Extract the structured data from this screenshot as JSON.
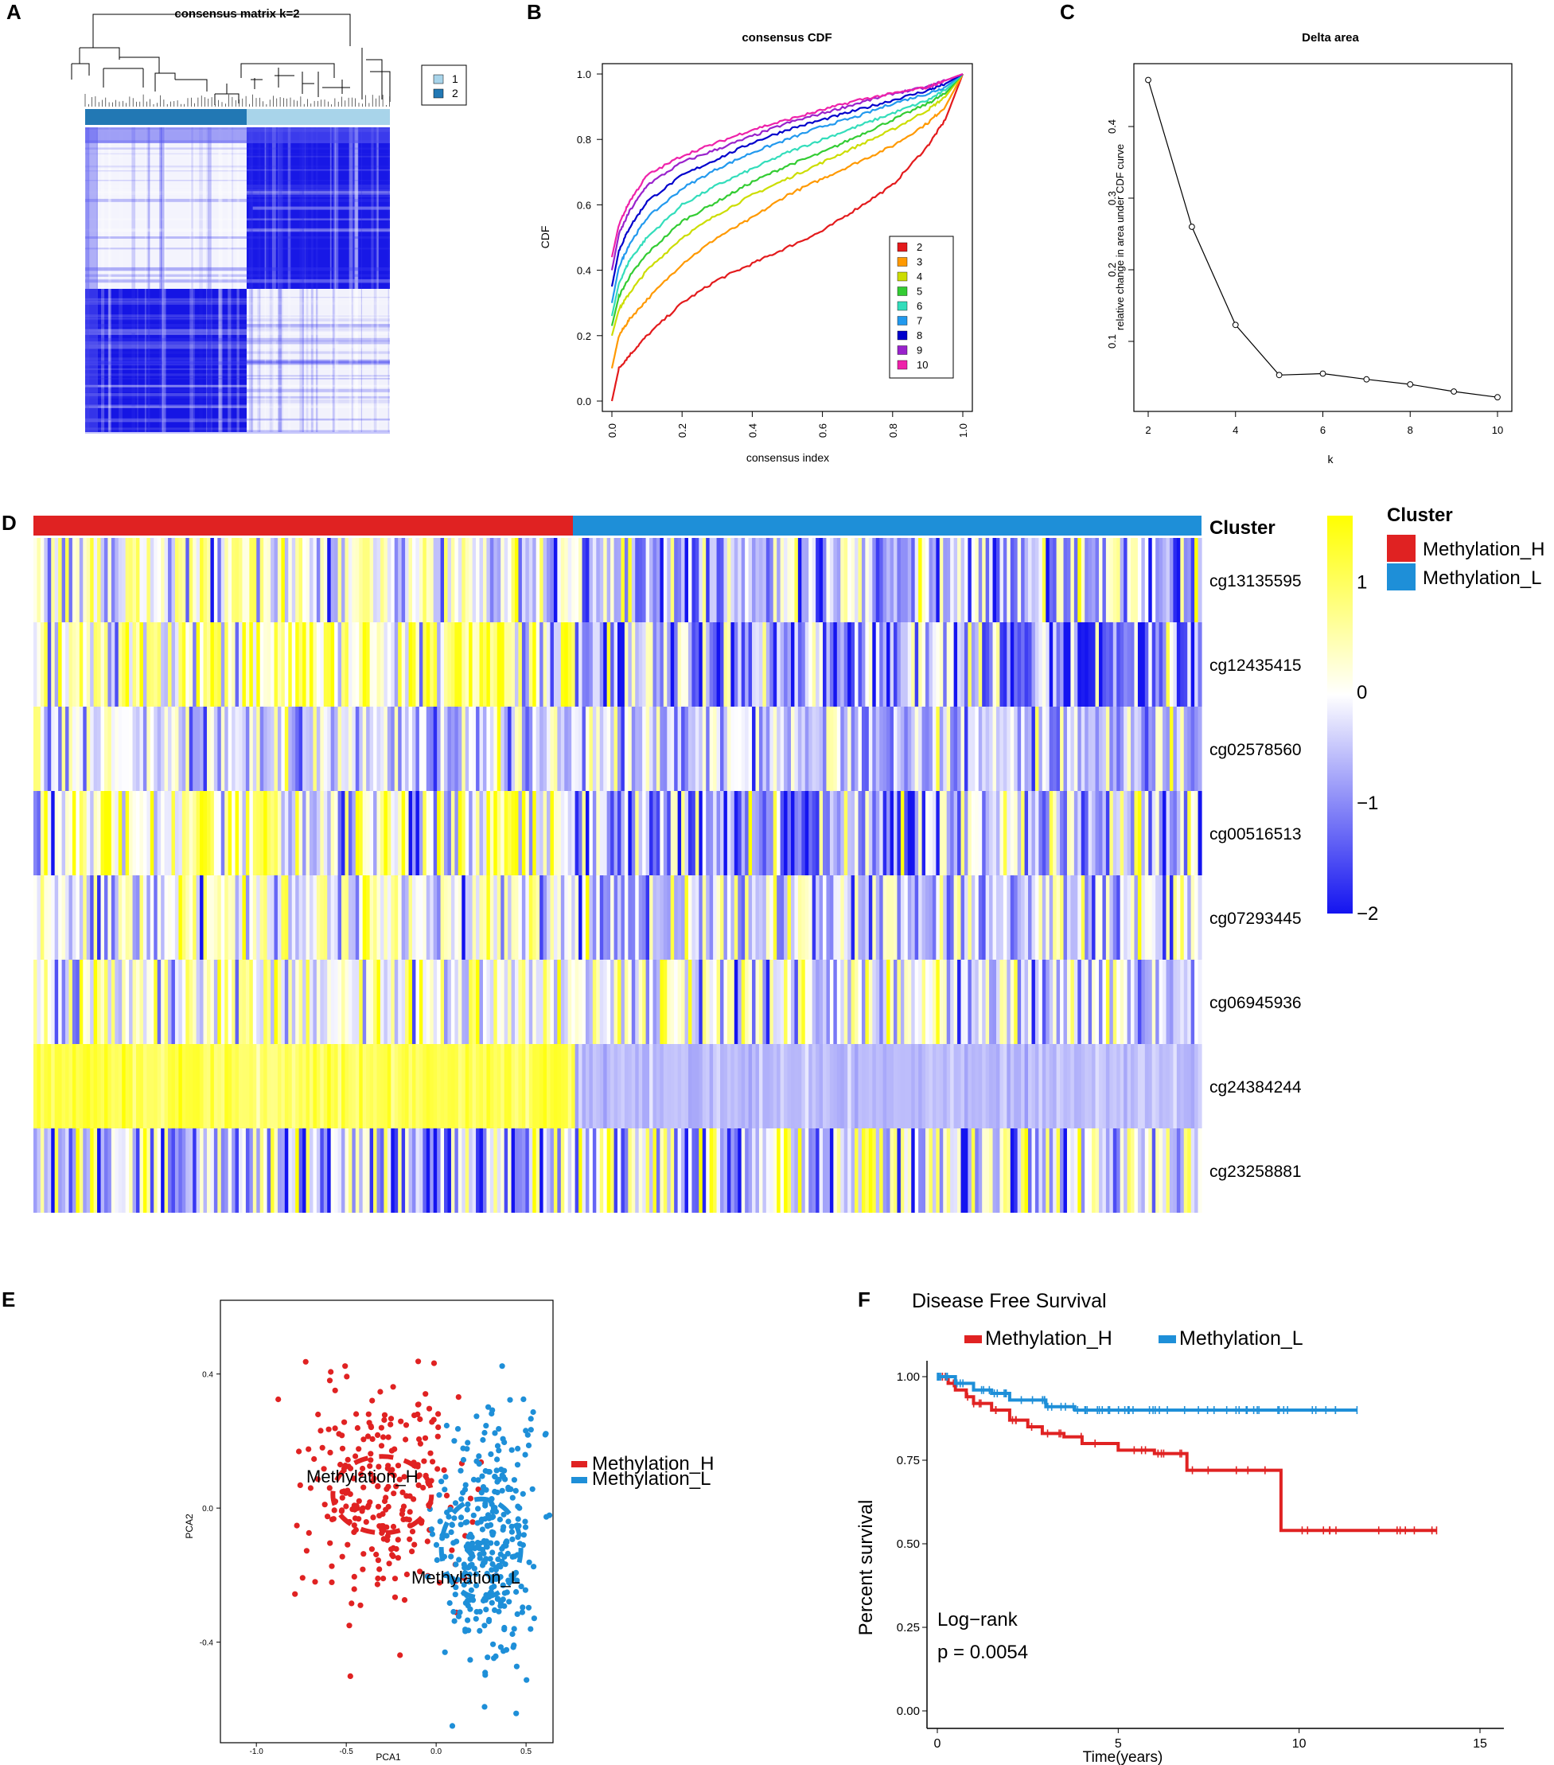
{
  "panels": {
    "a": "A",
    "b": "B",
    "c": "C",
    "d": "D",
    "e": "E",
    "f": "F"
  },
  "colors": {
    "heat_blue": "#1414f0",
    "heat_white": "#ffffff",
    "heat_yellow": "#ffff00",
    "red": "#e02222",
    "blue": "#1e8fd8",
    "cluster1": "#a8d4ea",
    "cluster2": "#2278b4"
  },
  "chart_data": [
    {
      "id": "A",
      "type": "heatmap",
      "title": "consensus matrix k=2",
      "legend": [
        {
          "label": "1",
          "color": "#a8d4ea"
        },
        {
          "label": "2",
          "color": "#2278b4"
        }
      ],
      "clusters": [
        "2",
        "1"
      ]
    },
    {
      "id": "B",
      "type": "line",
      "title": "consensus CDF",
      "xlabel": "consensus index",
      "ylabel": "CDF",
      "xlim": [
        0,
        1
      ],
      "ylim": [
        0,
        1
      ],
      "xticks": [
        "0.0",
        "0.2",
        "0.4",
        "0.6",
        "0.8",
        "1.0"
      ],
      "yticks": [
        "0.0",
        "0.2",
        "0.4",
        "0.6",
        "0.8",
        "1.0"
      ],
      "x": [
        0,
        0.02,
        0.05,
        0.1,
        0.2,
        0.3,
        0.4,
        0.5,
        0.6,
        0.7,
        0.8,
        0.9,
        0.95,
        1.0
      ],
      "series": [
        {
          "name": "2",
          "color": "#e31a1c",
          "values": [
            0,
            0.1,
            0.14,
            0.2,
            0.3,
            0.37,
            0.42,
            0.47,
            0.52,
            0.59,
            0.66,
            0.78,
            0.86,
            1.0
          ]
        },
        {
          "name": "3",
          "color": "#ff9900",
          "values": [
            0.1,
            0.2,
            0.25,
            0.31,
            0.42,
            0.5,
            0.56,
            0.63,
            0.68,
            0.73,
            0.78,
            0.85,
            0.9,
            1.0
          ]
        },
        {
          "name": "4",
          "color": "#ccdd00",
          "values": [
            0.2,
            0.28,
            0.33,
            0.4,
            0.5,
            0.57,
            0.63,
            0.68,
            0.73,
            0.78,
            0.83,
            0.89,
            0.93,
            1.0
          ]
        },
        {
          "name": "5",
          "color": "#33cc33",
          "values": [
            0.23,
            0.32,
            0.38,
            0.45,
            0.55,
            0.61,
            0.67,
            0.72,
            0.76,
            0.81,
            0.86,
            0.91,
            0.94,
            1.0
          ]
        },
        {
          "name": "6",
          "color": "#33ddbb",
          "values": [
            0.26,
            0.36,
            0.43,
            0.5,
            0.6,
            0.66,
            0.71,
            0.76,
            0.8,
            0.84,
            0.88,
            0.92,
            0.95,
            1.0
          ]
        },
        {
          "name": "7",
          "color": "#2299ee",
          "values": [
            0.3,
            0.41,
            0.48,
            0.56,
            0.65,
            0.71,
            0.76,
            0.8,
            0.84,
            0.87,
            0.91,
            0.94,
            0.96,
            1.0
          ]
        },
        {
          "name": "8",
          "color": "#0000cc",
          "values": [
            0.35,
            0.46,
            0.53,
            0.61,
            0.69,
            0.74,
            0.79,
            0.83,
            0.86,
            0.89,
            0.92,
            0.95,
            0.97,
            1.0
          ]
        },
        {
          "name": "9",
          "color": "#9922cc",
          "values": [
            0.4,
            0.51,
            0.58,
            0.66,
            0.73,
            0.77,
            0.81,
            0.85,
            0.88,
            0.91,
            0.94,
            0.96,
            0.98,
            1.0
          ]
        },
        {
          "name": "10",
          "color": "#ee22aa",
          "values": [
            0.44,
            0.54,
            0.61,
            0.69,
            0.75,
            0.79,
            0.83,
            0.86,
            0.89,
            0.92,
            0.94,
            0.96,
            0.98,
            1.0
          ]
        }
      ]
    },
    {
      "id": "C",
      "type": "line",
      "title": "Delta area",
      "xlabel": "k",
      "ylabel": "relative change in area under CDF curve",
      "xlim": [
        2,
        10
      ],
      "ylim": [
        0.02,
        0.47
      ],
      "xticks": [
        "2",
        "4",
        "6",
        "8",
        "10"
      ],
      "yticks": [
        "0.1",
        "0.2",
        "0.3",
        "0.4"
      ],
      "x": [
        2,
        3,
        4,
        5,
        6,
        7,
        8,
        9,
        10
      ],
      "values": [
        0.465,
        0.26,
        0.123,
        0.053,
        0.055,
        0.047,
        0.04,
        0.03,
        0.022
      ]
    },
    {
      "id": "D",
      "type": "heatmap",
      "annotation_label": "Cluster",
      "rows": [
        "cg13135595",
        "cg12435415",
        "cg02578560",
        "cg00516513",
        "cg07293445",
        "cg06945936",
        "cg24384244",
        "cg23258881"
      ],
      "clusters": [
        {
          "name": "Methylation_H",
          "color": "#e02222"
        },
        {
          "name": "Methylation_L",
          "color": "#1e8fd8"
        }
      ],
      "colorbar_ticks": [
        "1",
        "0",
        "−1",
        "−2"
      ],
      "colorbar_range": [
        -2,
        1.6
      ],
      "legend_title": "Cluster",
      "legend": [
        {
          "label": "Methylation_H",
          "color": "#e02222"
        },
        {
          "label": "Methylation_L",
          "color": "#1e8fd8"
        }
      ]
    },
    {
      "id": "E",
      "type": "scatter",
      "xlabel": "PCA1",
      "ylabel": "PCA2",
      "xlim": [
        -1.2,
        0.65
      ],
      "ylim": [
        -0.7,
        0.62
      ],
      "xticks": [
        "-1.0",
        "-0.5",
        "0.0",
        "0.5"
      ],
      "yticks": [
        "0.4",
        "0.0",
        "-0.4"
      ],
      "groups": [
        {
          "name": "Methylation_H",
          "color": "#e02222",
          "center": [
            -0.3,
            0.04
          ]
        },
        {
          "name": "Methylation_L",
          "color": "#1e8fd8",
          "center": [
            0.25,
            -0.12
          ]
        }
      ],
      "legend": [
        "Methylation_H",
        "Methylation_L"
      ]
    },
    {
      "id": "F",
      "type": "line",
      "title": "Disease Free Survival",
      "xlabel": "Time(years)",
      "ylabel": "Percent survival",
      "xlim": [
        0,
        15
      ],
      "ylim": [
        0,
        1
      ],
      "xticks": [
        "0",
        "5",
        "10",
        "15"
      ],
      "yticks": [
        "1.00",
        "0.75",
        "0.50",
        "0.25",
        "0.00"
      ],
      "series": [
        {
          "name": "Methylation_H",
          "color": "#e02222",
          "t": [
            0,
            0.3,
            0.5,
            0.8,
            1.0,
            1.5,
            2.0,
            2.5,
            2.9,
            3.5,
            4.0,
            5.0,
            6.0,
            6.9,
            9.5,
            13.8
          ],
          "s": [
            1.0,
            0.98,
            0.96,
            0.94,
            0.92,
            0.9,
            0.87,
            0.85,
            0.83,
            0.82,
            0.8,
            0.78,
            0.77,
            0.72,
            0.54,
            0.54
          ]
        },
        {
          "name": "Methylation_L",
          "color": "#1e8fd8",
          "t": [
            0,
            0.5,
            1.0,
            1.5,
            2.0,
            3.0,
            3.8,
            11.6
          ],
          "s": [
            1.0,
            0.98,
            0.96,
            0.95,
            0.93,
            0.91,
            0.9,
            0.9
          ]
        }
      ],
      "annotation": [
        "Log−rank",
        "p = 0.0054"
      ]
    }
  ]
}
